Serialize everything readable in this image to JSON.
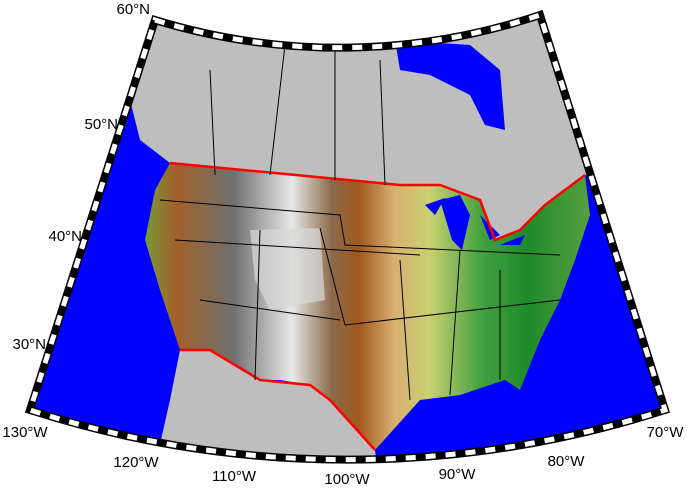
{
  "map": {
    "lat_labels": [
      "60°N",
      "50°N",
      "40°N",
      "30°N"
    ],
    "lon_labels": [
      "130°W",
      "120°W",
      "110°W",
      "100°W",
      "90°W",
      "80°W",
      "70°W"
    ]
  }
}
